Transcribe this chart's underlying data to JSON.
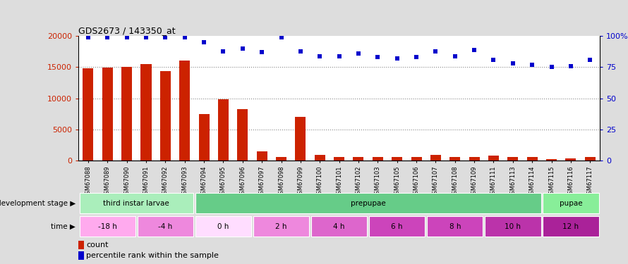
{
  "title": "GDS2673 / 143350_at",
  "samples": [
    "GSM67088",
    "GSM67089",
    "GSM67090",
    "GSM67091",
    "GSM67092",
    "GSM67093",
    "GSM67094",
    "GSM67095",
    "GSM67096",
    "GSM67097",
    "GSM67098",
    "GSM67099",
    "GSM67100",
    "GSM67101",
    "GSM67102",
    "GSM67103",
    "GSM67105",
    "GSM67106",
    "GSM67107",
    "GSM67108",
    "GSM67109",
    "GSM67111",
    "GSM67113",
    "GSM67114",
    "GSM67115",
    "GSM67116",
    "GSM67117"
  ],
  "counts": [
    14800,
    14900,
    15100,
    15500,
    14400,
    16100,
    7400,
    9800,
    8200,
    1450,
    500,
    7000,
    900,
    500,
    500,
    500,
    500,
    500,
    900,
    500,
    500,
    700,
    500,
    500,
    200,
    300,
    500
  ],
  "percentile": [
    99,
    99,
    99,
    99,
    99,
    99,
    95,
    88,
    90,
    87,
    99,
    88,
    84,
    84,
    86,
    83,
    82,
    83,
    88,
    84,
    89,
    81,
    78,
    77,
    75,
    76,
    81
  ],
  "ylim_left": [
    0,
    20000
  ],
  "ylim_right": [
    0,
    100
  ],
  "yticks_left": [
    0,
    5000,
    10000,
    15000,
    20000
  ],
  "yticks_right": [
    0,
    25,
    50,
    75,
    100
  ],
  "bar_color": "#cc2200",
  "scatter_color": "#0000cc",
  "background_color": "#dddddd",
  "plot_bg_color": "#ffffff",
  "dev_colors": [
    "#aaeebb",
    "#66cc88",
    "#88ee99"
  ],
  "time_colors": [
    "#ffaaee",
    "#ee88dd",
    "#ffddff",
    "#ee88dd",
    "#dd66cc",
    "#cc44bb",
    "#cc44bb",
    "#bb33aa",
    "#aa2299"
  ],
  "dev_labels": [
    "third instar larvae",
    "prepupae",
    "pupae"
  ],
  "dev_starts": [
    0,
    6,
    24
  ],
  "dev_ends": [
    6,
    24,
    27
  ],
  "time_labels": [
    "-18 h",
    "-4 h",
    "0 h",
    "2 h",
    "4 h",
    "6 h",
    "8 h",
    "10 h",
    "12 h"
  ],
  "time_starts": [
    0,
    3,
    6,
    9,
    12,
    15,
    18,
    21,
    24
  ],
  "time_ends": [
    3,
    6,
    9,
    12,
    15,
    18,
    21,
    24,
    27
  ],
  "dotted_line_color": "#888888",
  "legend_count_label": "count",
  "legend_pct_label": "percentile rank within the sample"
}
